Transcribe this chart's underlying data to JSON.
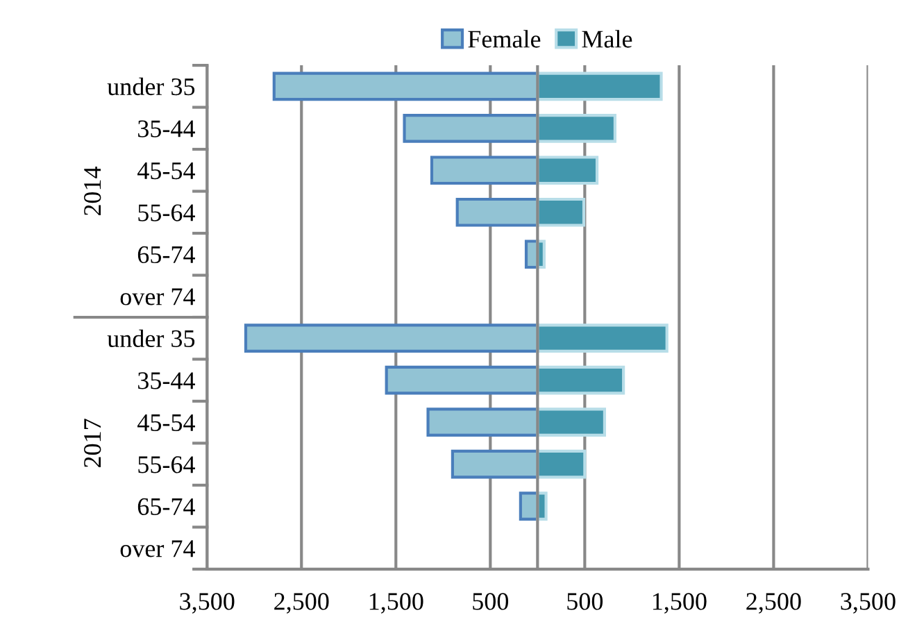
{
  "chart_data": {
    "type": "bar",
    "orientation": "horizontal",
    "categories": [
      "under 35",
      "35-44",
      "45-54",
      "55-64",
      "65-74",
      "over 74",
      "under 35",
      "35-44",
      "45-54",
      "55-64",
      "65-74",
      "over 74"
    ],
    "series": [
      {
        "name": "Female",
        "color": "#92c3d4",
        "values": [
          -2790,
          -1410,
          -1120,
          -850,
          -120,
          null,
          -3090,
          -1600,
          -1160,
          -900,
          -180,
          null
        ]
      },
      {
        "name": "Male",
        "color": "#4297ad",
        "values": [
          1310,
          820,
          630,
          490,
          70,
          null,
          1370,
          910,
          710,
          500,
          90,
          null
        ]
      }
    ],
    "annotations": [
      "2014",
      "2017"
    ],
    "xlim": [
      -3500,
      3500
    ],
    "xticks": [
      {
        "value": -3500,
        "label": "3,500"
      },
      {
        "value": -2500,
        "label": "2,500"
      },
      {
        "value": -1500,
        "label": "1,500"
      },
      {
        "value": -500,
        "label": "500"
      },
      500,
      {
        "value": 1500,
        "label": "1,500"
      },
      {
        "value": 2500,
        "label": "2,500"
      },
      {
        "value": 3500,
        "label": "3,500"
      }
    ],
    "stacked": true,
    "grid": "x",
    "legend": "top"
  }
}
